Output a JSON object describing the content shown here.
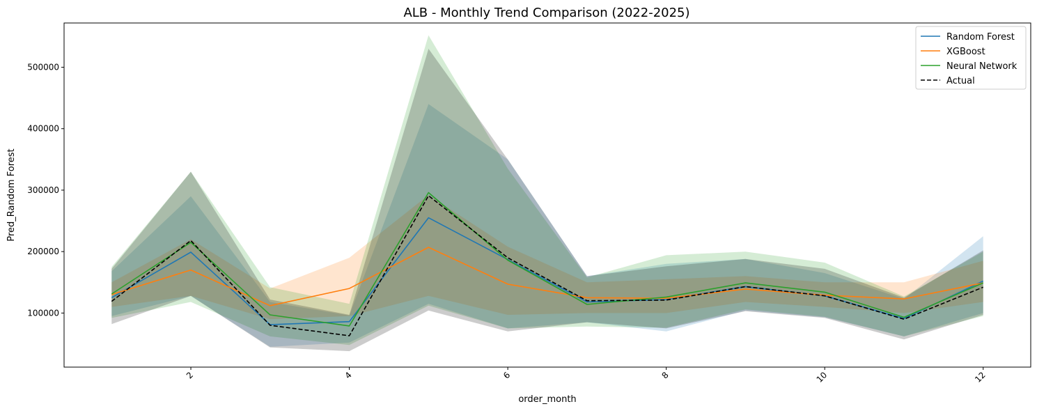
{
  "chart_data": {
    "type": "line",
    "title": "ALB - Monthly Trend Comparison (2022-2025)",
    "xlabel": "order_month",
    "ylabel": "Pred_Random Forest",
    "xlim": [
      0.4,
      12.6
    ],
    "ylim": [
      12000,
      572000
    ],
    "x": [
      1,
      2,
      3,
      4,
      5,
      6,
      7,
      8,
      9,
      10,
      11,
      12
    ],
    "xticks": [
      2,
      4,
      6,
      8,
      10,
      12
    ],
    "xtick_labels": [
      "2",
      "4",
      "6",
      "8",
      "10",
      "12"
    ],
    "yticks": [
      100000,
      200000,
      300000,
      400000,
      500000
    ],
    "ytick_labels": [
      "100000",
      "200000",
      "300000",
      "400000",
      "500000"
    ],
    "grid": false,
    "legend_position": "top-right",
    "series": [
      {
        "name": "Random Forest",
        "color": "#1f77b4",
        "dash": "solid",
        "values": [
          125000,
          199000,
          81000,
          86000,
          255000,
          187000,
          118000,
          122000,
          143000,
          128000,
          91000,
          152000
        ],
        "lower": [
          95000,
          128000,
          45000,
          52000,
          115000,
          75000,
          85000,
          70000,
          104000,
          93000,
          62000,
          100000
        ],
        "upper": [
          168000,
          290000,
          118000,
          96000,
          440000,
          350000,
          160000,
          180000,
          188000,
          165000,
          123000,
          225000
        ]
      },
      {
        "name": "XGBoost",
        "color": "#ff7f0e",
        "dash": "solid",
        "values": [
          130000,
          170000,
          112000,
          140000,
          207000,
          147000,
          125000,
          124000,
          139000,
          129000,
          123000,
          149000
        ],
        "lower": [
          110000,
          128000,
          90000,
          95000,
          128000,
          97000,
          100000,
          100000,
          118000,
          110000,
          100000,
          118000
        ],
        "upper": [
          150000,
          220000,
          140000,
          190000,
          292000,
          208000,
          150000,
          155000,
          160000,
          150000,
          150000,
          185000
        ]
      },
      {
        "name": "Neural Network",
        "color": "#2ca02c",
        "dash": "solid",
        "values": [
          131000,
          215000,
          97000,
          79000,
          296000,
          186000,
          114000,
          126000,
          149000,
          134000,
          93000,
          149000
        ],
        "lower": [
          92000,
          118000,
          62000,
          48000,
          112000,
          75000,
          78000,
          76000,
          106000,
          94000,
          62000,
          95000
        ],
        "upper": [
          175000,
          330000,
          142000,
          115000,
          552000,
          335000,
          158000,
          194000,
          200000,
          182000,
          127000,
          200000
        ]
      },
      {
        "name": "Actual",
        "color": "#000000",
        "dash": "dashed",
        "values": [
          119000,
          218000,
          80000,
          63000,
          291000,
          190000,
          120000,
          121000,
          143000,
          128000,
          90000,
          142000
        ],
        "lower": [
          82000,
          128000,
          44000,
          38000,
          104000,
          70000,
          85000,
          75000,
          103000,
          92000,
          57000,
          97000
        ],
        "upper": [
          172000,
          330000,
          122000,
          97000,
          530000,
          350000,
          160000,
          176000,
          188000,
          172000,
          125000,
          202000
        ]
      }
    ]
  }
}
